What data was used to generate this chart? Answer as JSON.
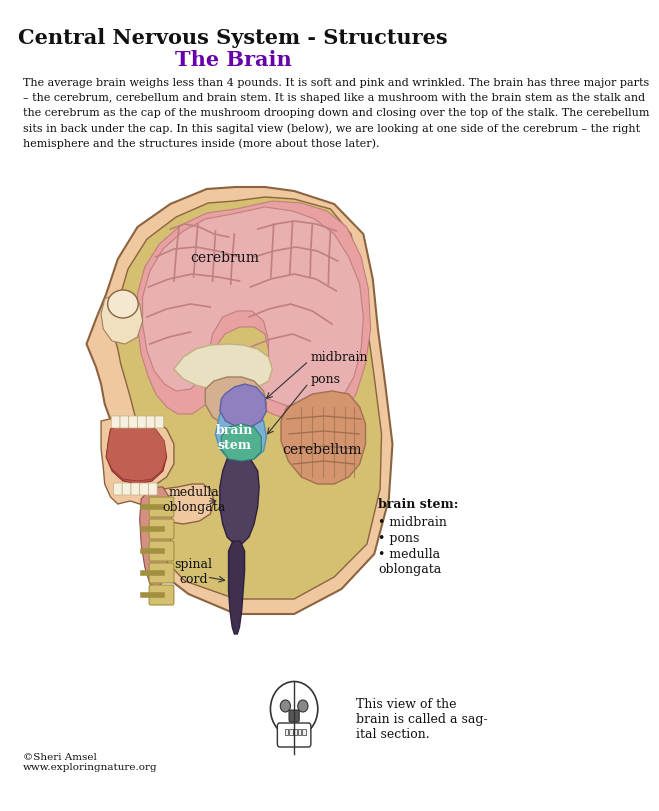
{
  "title_main": "Central Nervous System - Structures",
  "title_sub": "The Brain",
  "title_sub_color": "#6600aa",
  "title_main_fontsize": 15,
  "title_sub_fontsize": 15,
  "body_text": "The average brain weighs less than 4 pounds. It is soft and pink and wrinkled. The brain has three major parts\n– the cerebrum, cerebellum and brain stem. It is shaped like a mushroom with the brain stem as the stalk and\nthe cerebrum as the cap of the mushroom drooping down and closing over the top of the stalk. The cerebellum\nsits in back under the cap. In this sagital view (below), we are looking at one side of the cerebrum – the right\nhemisphere and the structures inside (more about those later).",
  "copyright_text": "©Sheri Amsel\nwww.exploringnature.org",
  "sagital_text": "This view of the\nbrain is called a sag-\nital section.",
  "label_cerebrum": "cerebrum",
  "label_brainstem": "brain\nstem",
  "label_midbrain": "midbrain",
  "label_pons": "pons",
  "label_cerebellum": "cerebellum",
  "label_medulla": "medulla\noblongata",
  "label_spinal": "spinal\ncord",
  "label_brainstem_note": "brain stem:",
  "label_midbrain2": "midbrain",
  "label_pons2": "pons",
  "label_medulla2": "medulla\noblongata",
  "skin_color": "#f0c8a0",
  "brain_pink": "#e8a0a0",
  "cerebellum_color": "#d4956e",
  "brainstem_blue": "#7ab0d4",
  "brainstem_purple": "#9080c0",
  "brainstem_teal": "#50b090",
  "medulla_dark": "#504060",
  "spinal_dark": "#403050",
  "bone_color": "#d4c070",
  "tongue_color": "#c05050",
  "bg_color": "#ffffff"
}
